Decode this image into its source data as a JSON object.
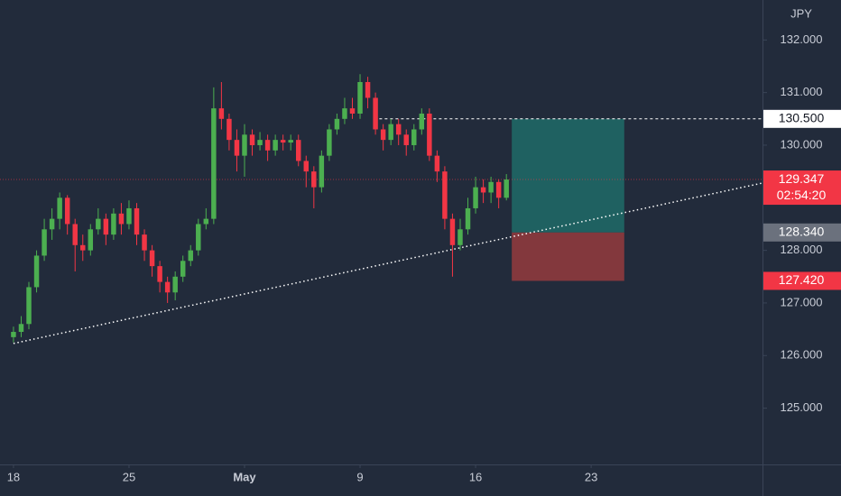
{
  "chart_data": {
    "type": "candlestick",
    "currency": "JPY",
    "up_color": "#4caf50",
    "down_color": "#f23645",
    "xlim": [
      -1.75,
      97.25
    ],
    "xticks": [
      {
        "value": 0,
        "label": "18"
      },
      {
        "value": 15,
        "label": "25"
      },
      {
        "value": 30,
        "label": "May"
      },
      {
        "value": 45,
        "label": "9"
      },
      {
        "value": 60,
        "label": "16"
      },
      {
        "value": 75,
        "label": "23"
      }
    ],
    "ylim": [
      123.93,
      132.76
    ],
    "yticks": [
      {
        "value": 125,
        "label": "125.000"
      },
      {
        "value": 126,
        "label": "126.000"
      },
      {
        "value": 127,
        "label": "127.000"
      },
      {
        "value": 128,
        "label": "128.000"
      },
      {
        "value": 130,
        "label": "130.000"
      },
      {
        "value": 131,
        "label": "131.000"
      },
      {
        "value": 132,
        "label": "132.000"
      }
    ],
    "open": [
      126.35,
      126.45,
      126.6,
      127.3,
      127.9,
      128.4,
      128.6,
      129.0,
      128.5,
      128.1,
      128.0,
      128.4,
      128.6,
      128.3,
      128.7,
      128.5,
      128.8,
      128.3,
      128.0,
      127.7,
      127.4,
      127.2,
      127.5,
      127.8,
      128.0,
      128.5,
      128.6,
      130.7,
      130.5,
      130.1,
      129.8,
      130.2,
      130.0,
      130.1,
      129.9,
      130.1,
      130.05,
      130.1,
      129.7,
      129.5,
      129.2,
      129.8,
      130.3,
      130.5,
      130.7,
      130.6,
      131.2,
      130.9,
      130.3,
      130.1,
      130.4,
      130.2,
      130.0,
      130.3,
      130.6,
      129.8,
      129.5,
      128.6,
      128.1,
      128.4,
      128.8,
      129.2,
      129.1,
      129.3,
      129.0
    ],
    "high": [
      126.55,
      126.75,
      127.4,
      128.0,
      128.6,
      128.8,
      129.1,
      129.05,
      128.6,
      128.3,
      128.5,
      128.8,
      128.7,
      128.8,
      128.9,
      128.95,
      128.9,
      128.4,
      128.1,
      127.8,
      127.5,
      127.6,
      127.9,
      128.1,
      128.6,
      128.8,
      131.1,
      131.2,
      130.6,
      130.3,
      130.4,
      130.3,
      130.25,
      130.2,
      130.2,
      130.2,
      130.2,
      130.2,
      129.8,
      129.6,
      129.9,
      130.4,
      130.6,
      130.9,
      130.9,
      131.35,
      131.3,
      131.0,
      130.4,
      130.5,
      130.5,
      130.3,
      130.4,
      130.7,
      130.7,
      129.9,
      129.6,
      128.7,
      128.6,
      129.0,
      129.4,
      129.35,
      129.4,
      129.35,
      129.45
    ],
    "low": [
      126.25,
      126.35,
      126.5,
      127.2,
      127.8,
      128.2,
      128.4,
      128.3,
      127.6,
      127.8,
      127.9,
      128.3,
      128.1,
      128.2,
      128.3,
      128.4,
      128.1,
      127.8,
      127.5,
      127.2,
      127.0,
      127.05,
      127.4,
      127.7,
      127.9,
      128.4,
      128.5,
      130.3,
      129.9,
      129.5,
      129.4,
      129.8,
      129.9,
      129.7,
      129.8,
      129.9,
      129.9,
      129.6,
      129.2,
      128.8,
      129.1,
      129.7,
      130.2,
      130.4,
      130.5,
      130.5,
      130.7,
      130.2,
      129.9,
      130.0,
      130.0,
      129.8,
      129.9,
      130.2,
      129.7,
      129.3,
      128.4,
      127.5,
      128.0,
      128.3,
      128.7,
      128.9,
      128.9,
      128.8,
      128.95
    ],
    "close": [
      126.45,
      126.6,
      127.3,
      127.9,
      128.4,
      128.6,
      129.0,
      128.5,
      128.1,
      128.0,
      128.4,
      128.6,
      128.3,
      128.7,
      128.5,
      128.8,
      128.3,
      128.0,
      127.7,
      127.4,
      127.2,
      127.5,
      127.8,
      128.0,
      128.5,
      128.6,
      130.7,
      130.5,
      130.1,
      129.8,
      130.2,
      130.0,
      130.1,
      129.9,
      130.1,
      130.05,
      130.1,
      129.7,
      129.5,
      129.2,
      129.8,
      130.3,
      130.5,
      130.7,
      130.6,
      131.2,
      130.9,
      130.3,
      130.1,
      130.4,
      130.2,
      130.0,
      130.3,
      130.6,
      129.8,
      129.5,
      128.6,
      128.1,
      128.4,
      128.8,
      129.2,
      129.1,
      129.3,
      129.0,
      129.347
    ],
    "last": 129.347,
    "countdown": "02:54:20",
    "trendline": {
      "x": [
        0,
        97.25
      ],
      "y": [
        126.23,
        129.28
      ]
    },
    "resistance": {
      "x": [
        47.5,
        97.25
      ],
      "value": 130.5
    },
    "position": {
      "x": [
        64.7,
        79.3
      ],
      "target": 130.5,
      "target_label": "130.500",
      "entry": 128.34,
      "entry_label": "128.340",
      "stop": 127.42,
      "stop_label": "127.420"
    }
  }
}
